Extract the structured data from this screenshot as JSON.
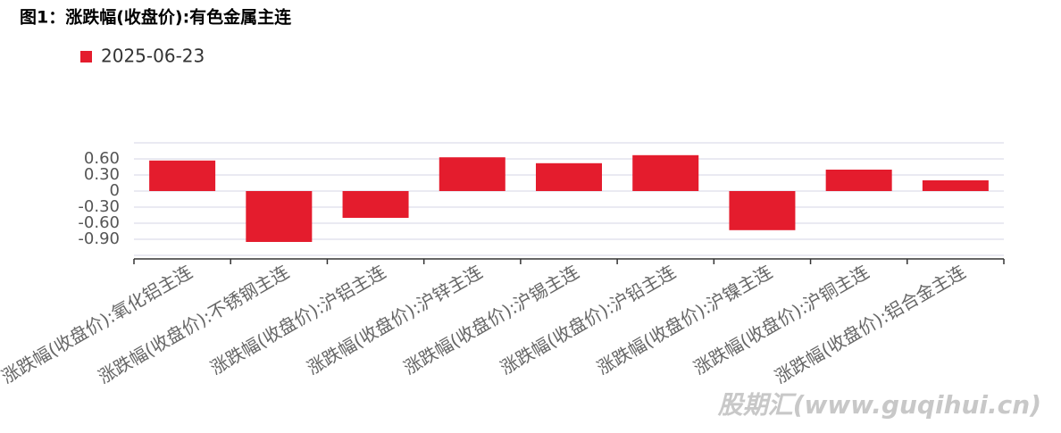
{
  "chart_data": {
    "type": "bar",
    "title": "图1：涨跌幅(收盘价):有色金属主连",
    "categories": [
      "涨跌幅(收盘价):氧化铝主连",
      "涨跌幅(收盘价):不锈钢主连",
      "涨跌幅(收盘价):沪铝主连",
      "涨跌幅(收盘价):沪锌主连",
      "涨跌幅(收盘价):沪锡主连",
      "涨跌幅(收盘价):沪铅主连",
      "涨跌幅(收盘价):沪镍主连",
      "涨跌幅(收盘价):沪铜主连",
      "涨跌幅(收盘价):铝合金主连"
    ],
    "series": [
      {
        "name": "2025-06-23",
        "color": "#e41c2d",
        "values": [
          0.57,
          -0.95,
          -0.5,
          0.63,
          0.52,
          0.67,
          -0.73,
          0.4,
          0.2
        ]
      }
    ],
    "ylim": [
      -1.2,
      0.9
    ],
    "yticks": [
      {
        "value": 0.6,
        "label": "0.60"
      },
      {
        "value": 0.3,
        "label": "0.30"
      },
      0,
      {
        "value": -0.3,
        "label": "-0.30"
      },
      {
        "value": -0.6,
        "label": "-0.60"
      },
      {
        "value": -0.9,
        "label": "-0.90"
      }
    ],
    "grid": true,
    "legend": "top-left",
    "watermark": "股期汇(www.guqihui.cn)"
  }
}
